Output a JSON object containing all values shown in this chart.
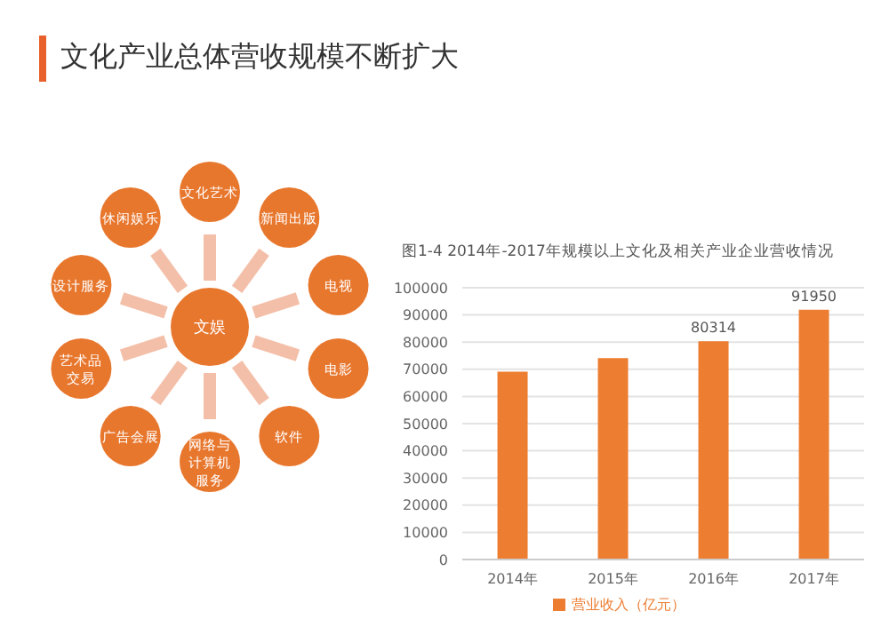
{
  "chart_data": {
    "type": "bar",
    "title": "文化产业总体营收规模不断扩大",
    "subtitle": "图1-4 2014年-2017年规模以上文化及相关产业企业营收情况",
    "categories": [
      "2014年",
      "2015年",
      "2016年",
      "2017年"
    ],
    "series": [
      {
        "name": "营业收入（亿元）",
        "color": "#ed7d31",
        "values": [
          69100,
          74100,
          80314,
          91950
        ],
        "value_labels": [
          null,
          null,
          "80314",
          "91950"
        ]
      }
    ],
    "ylim": [
      0,
      100000
    ],
    "yticks": [
      0,
      10000,
      20000,
      30000,
      40000,
      50000,
      60000,
      70000,
      80000,
      90000,
      100000
    ],
    "grid": "y",
    "legend": "bottom",
    "annotations": [
      "文娱",
      "文化艺术",
      "新闻出版",
      "电视",
      "电影",
      "软件",
      "网络与计算机服务",
      "广告会展",
      "艺术品交易",
      "设计服务",
      "休闲娱乐"
    ]
  }
}
